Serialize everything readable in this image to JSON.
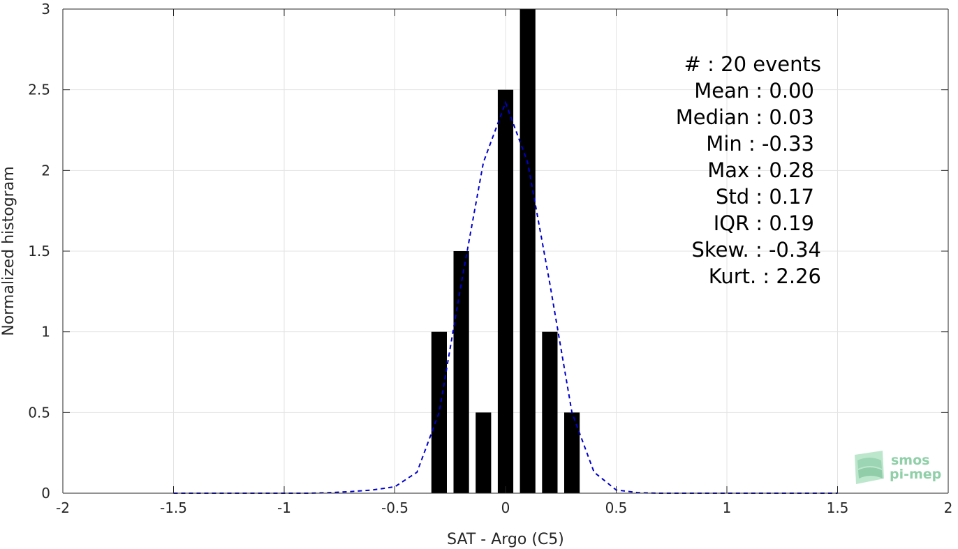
{
  "chart_data": {
    "type": "bar",
    "xlabel": "SAT - Argo (C5)",
    "ylabel": "Normalized histogram",
    "xlim": [
      -2,
      2
    ],
    "ylim": [
      0,
      3
    ],
    "grid": true,
    "x_ticks": [
      -2,
      -1.5,
      -1,
      -0.5,
      0,
      0.5,
      1,
      1.5,
      2
    ],
    "x_tick_labels": [
      "-2",
      "-1.5",
      "-1",
      "-0.5",
      "0",
      "0.5",
      "1",
      "1.5",
      "2"
    ],
    "y_ticks": [
      0,
      0.5,
      1,
      1.5,
      2,
      2.5,
      3
    ],
    "y_tick_labels": [
      "0",
      "0.5",
      "1",
      "1.5",
      "2",
      "2.5",
      "3"
    ],
    "bar_width": 0.07,
    "bar_color": "#000000",
    "bars": {
      "x": [
        -0.3,
        -0.2,
        -0.1,
        0.0,
        0.1,
        0.2,
        0.3
      ],
      "y": [
        1.0,
        1.5,
        0.5,
        2.5,
        3.0,
        1.0,
        0.5
      ]
    },
    "fit_line": {
      "style": "dashed",
      "color": "#0000cc",
      "x": [
        -1.5,
        -1.4,
        -1.3,
        -1.2,
        -1.1,
        -1.0,
        -0.9,
        -0.8,
        -0.7,
        -0.6,
        -0.5,
        -0.4,
        -0.3,
        -0.2,
        -0.1,
        0.0,
        0.1,
        0.2,
        0.3,
        0.4,
        0.5,
        0.6,
        0.7,
        0.8,
        0.9,
        1.0,
        1.1,
        1.2,
        1.3,
        1.4,
        1.5
      ],
      "y": [
        0,
        0,
        0,
        0,
        0,
        0,
        0,
        0.003,
        0.01,
        0.02,
        0.04,
        0.13,
        0.5,
        1.3,
        2.05,
        2.42,
        2.05,
        1.3,
        0.5,
        0.13,
        0.02,
        0.003,
        0,
        0,
        0,
        0,
        0,
        0,
        0,
        0,
        0
      ]
    },
    "annotations": [
      "#  : 20 events",
      "Mean : 0.00",
      "Median : 0.03",
      "Min : -0.33",
      "Max : 0.28",
      "Std : 0.17",
      "IQR : 0.19",
      "Skew. : -0.34",
      "Kurt. : 2.26"
    ]
  },
  "logo": {
    "line1": "smos",
    "line2": "pi-mep",
    "color": "#8fd0a8"
  }
}
